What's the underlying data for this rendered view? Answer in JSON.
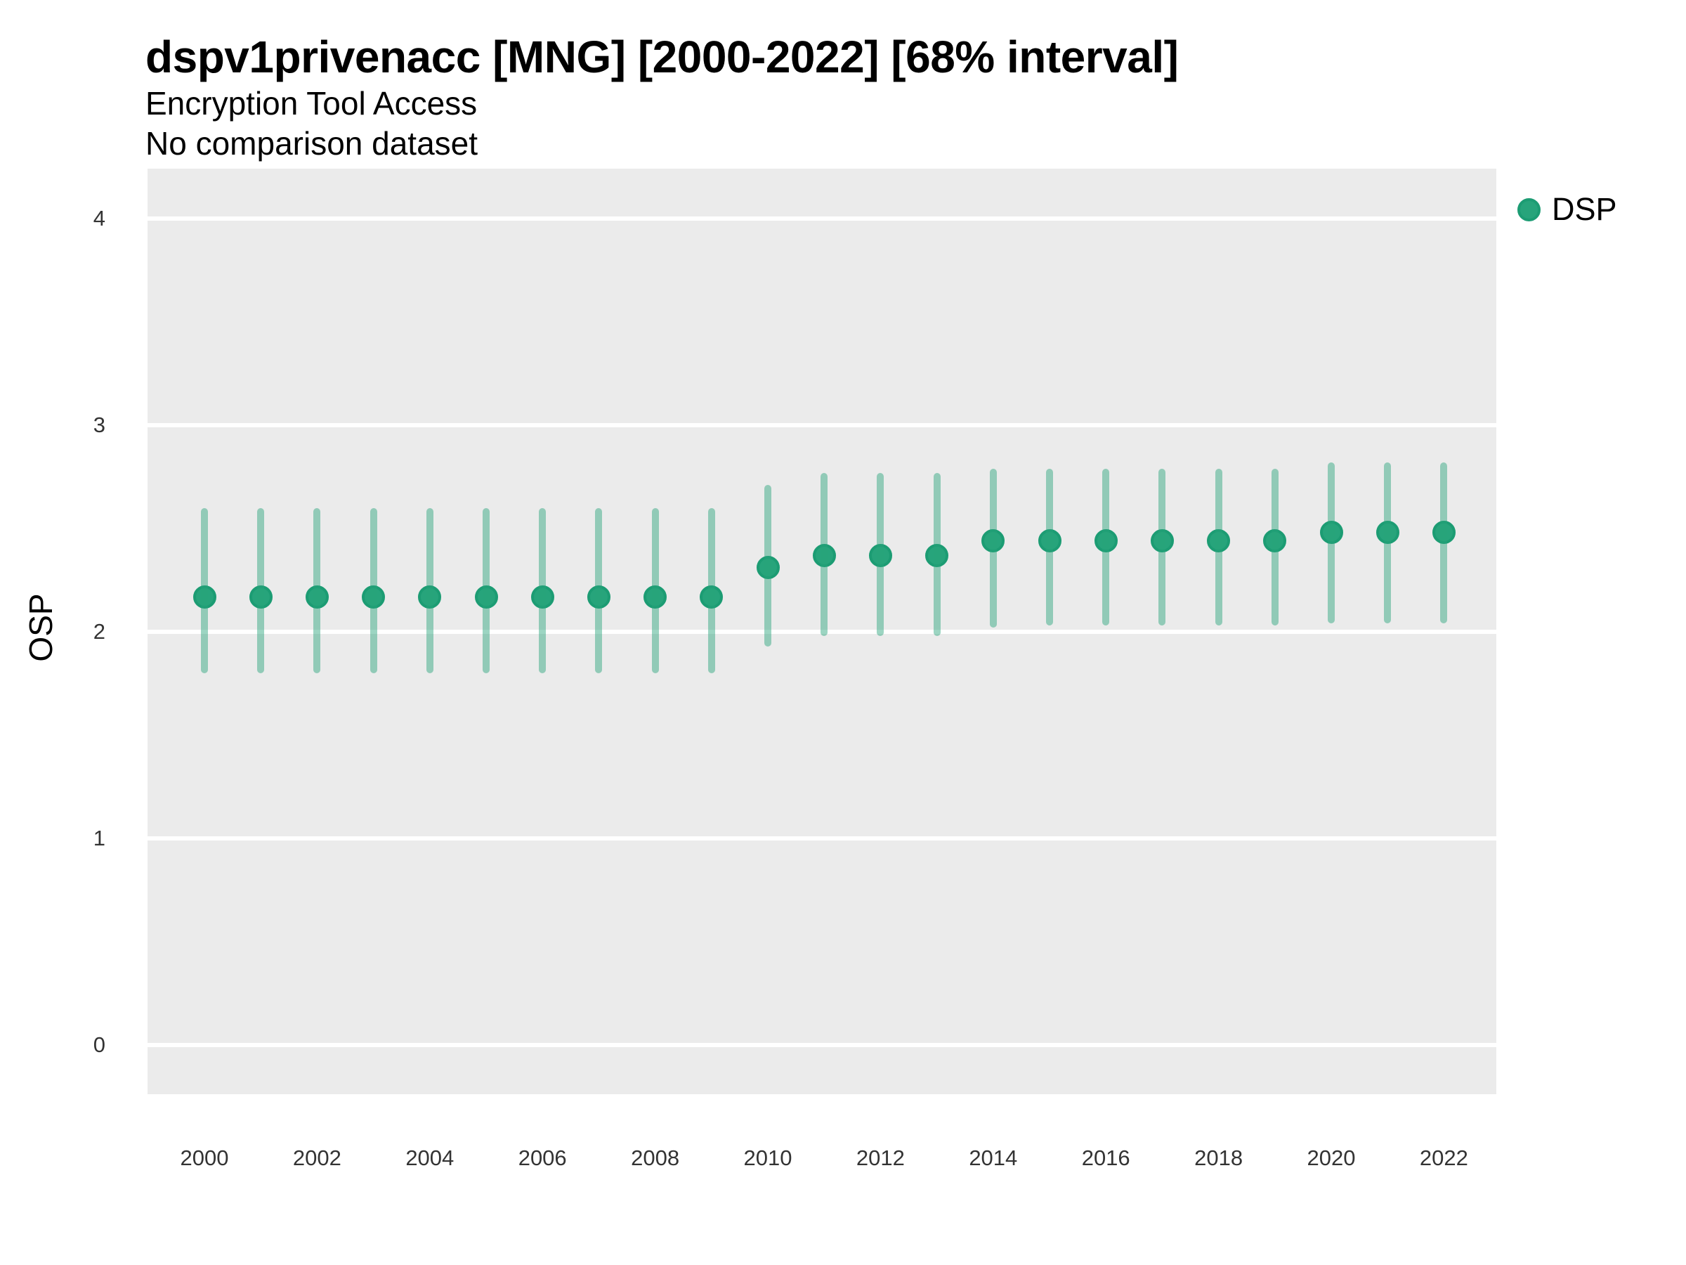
{
  "header": {
    "title": "dspv1privenacc [MNG] [2000-2022] [68% interval]",
    "subtitle": "Encryption Tool Access",
    "note": "No comparison dataset"
  },
  "axes": {
    "y_title": "OSP"
  },
  "legend": {
    "items": [
      {
        "label": "DSP",
        "color": "#27a47b"
      }
    ]
  },
  "style": {
    "panel_background": "#ebebeb",
    "gridline_color": "#ffffff",
    "point_fill": "#27a47b",
    "point_ring": "#1c9c73",
    "interval_color": "rgba(39,164,123,0.46)",
    "tick_text_color": "#333333"
  },
  "chart_data": {
    "type": "scatter",
    "title": "dspv1privenacc [MNG] [2000-2022] [68% interval]",
    "subtitle": "Encryption Tool Access",
    "note": "No comparison dataset",
    "xlabel": "",
    "ylabel": "OSP",
    "interval_level": "68%",
    "ylim": [
      -0.24,
      4.24
    ],
    "y_ticks": [
      0,
      1,
      2,
      3,
      4
    ],
    "x_ticks": [
      2000,
      2002,
      2004,
      2006,
      2008,
      2010,
      2012,
      2014,
      2016,
      2018,
      2020,
      2022
    ],
    "grid": "horizontal-major-only",
    "legend_position": "right",
    "series": [
      {
        "name": "DSP",
        "x": [
          2000,
          2001,
          2002,
          2003,
          2004,
          2005,
          2006,
          2007,
          2008,
          2009,
          2010,
          2011,
          2012,
          2013,
          2014,
          2015,
          2016,
          2017,
          2018,
          2019,
          2020,
          2021,
          2022
        ],
        "estimates": [
          2.17,
          2.17,
          2.17,
          2.17,
          2.17,
          2.17,
          2.17,
          2.17,
          2.17,
          2.17,
          2.31,
          2.37,
          2.37,
          2.37,
          2.44,
          2.44,
          2.44,
          2.44,
          2.44,
          2.44,
          2.48,
          2.48,
          2.48
        ],
        "lower_68": [
          1.8,
          1.8,
          1.8,
          1.8,
          1.8,
          1.8,
          1.8,
          1.8,
          1.8,
          1.8,
          1.93,
          1.98,
          1.98,
          1.98,
          2.02,
          2.03,
          2.03,
          2.03,
          2.03,
          2.03,
          2.04,
          2.04,
          2.04
        ],
        "upper_68": [
          2.6,
          2.6,
          2.6,
          2.6,
          2.6,
          2.6,
          2.6,
          2.6,
          2.6,
          2.6,
          2.71,
          2.77,
          2.77,
          2.77,
          2.79,
          2.79,
          2.79,
          2.79,
          2.79,
          2.79,
          2.82,
          2.82,
          2.82
        ]
      }
    ]
  }
}
